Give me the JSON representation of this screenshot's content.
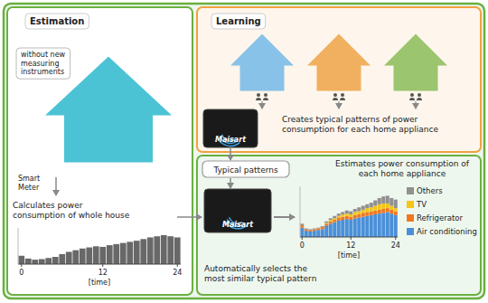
{
  "chart_data": [
    {
      "type": "bar",
      "title": "Calculates power\nconsumption of whole house",
      "xlabel": "[time]",
      "categories": [
        "0",
        null,
        null,
        null,
        null,
        null,
        null,
        null,
        null,
        null,
        null,
        null,
        "12",
        null,
        null,
        null,
        null,
        null,
        null,
        null,
        null,
        null,
        null,
        "24"
      ],
      "values": [
        1.5,
        1.0,
        0.8,
        0.9,
        1.1,
        1.3,
        1.8,
        2.2,
        2.5,
        2.8,
        3.0,
        3.2,
        3.1,
        3.4,
        3.6,
        3.8,
        4.0,
        4.2,
        4.5,
        4.8,
        5.0,
        5.2,
        5.0,
        4.8
      ],
      "color": "#686868",
      "ylim": [
        0,
        6.5
      ],
      "tick_labels": "x",
      "annotations": [
        {
          "text": "Estimation"
        },
        {
          "text": "without new\nmeasuring\ninstruments"
        },
        {
          "text": "Smart\nMeter"
        }
      ]
    },
    {
      "type": "bar",
      "stacked": true,
      "title": "Estimates power consumption of\neach home appliance",
      "xlabel": "[time]",
      "categories": [
        "0",
        null,
        null,
        null,
        null,
        null,
        null,
        null,
        null,
        null,
        null,
        null,
        "12",
        null,
        null,
        null,
        null,
        null,
        null,
        null,
        null,
        null,
        null,
        "24"
      ],
      "series": [
        {
          "name": "Air conditioning",
          "color": "#4a90d9",
          "values": [
            1.2,
            0.8,
            0.7,
            0.8,
            0.9,
            1.0,
            1.4,
            1.7,
            1.9,
            2.1,
            2.2,
            2.3,
            2.2,
            2.4,
            2.5,
            2.6,
            2.7,
            2.8,
            2.9,
            3.0,
            3.1,
            3.2,
            3.0,
            2.8
          ]
        },
        {
          "name": "Refrigerator",
          "color": "#f07820",
          "values": [
            0.3,
            0.2,
            0.2,
            0.2,
            0.2,
            0.3,
            0.3,
            0.3,
            0.3,
            0.4,
            0.4,
            0.4,
            0.4,
            0.4,
            0.4,
            0.5,
            0.5,
            0.5,
            0.5,
            0.5,
            0.5,
            0.5,
            0.5,
            0.5
          ]
        },
        {
          "name": "TV",
          "color": "#f5c518",
          "values": [
            0.0,
            0.0,
            0.0,
            0.0,
            0.0,
            0.0,
            0.1,
            0.2,
            0.2,
            0.2,
            0.3,
            0.3,
            0.3,
            0.4,
            0.4,
            0.4,
            0.5,
            0.5,
            0.6,
            0.7,
            0.7,
            0.6,
            0.5,
            0.4
          ]
        },
        {
          "name": "Others",
          "color": "#909090",
          "values": [
            0.2,
            0.1,
            0.1,
            0.1,
            0.1,
            0.1,
            0.2,
            0.2,
            0.3,
            0.3,
            0.3,
            0.4,
            0.4,
            0.4,
            0.5,
            0.5,
            0.5,
            0.6,
            0.7,
            0.8,
            0.9,
            1.0,
            1.0,
            1.1
          ]
        }
      ],
      "ylim": [
        0,
        6.5
      ],
      "tick_labels": "x",
      "legend": "right",
      "annotations": [
        {
          "text": "Learning"
        },
        {
          "text": "Creates typical patterns of power\nconsumption for each home appliance"
        },
        {
          "text": "Typical patterns"
        },
        {
          "text": "Maisart"
        },
        {
          "text": "Maisart"
        },
        {
          "text": "Automatically selects the\nmost similar typical pattern"
        }
      ]
    }
  ]
}
